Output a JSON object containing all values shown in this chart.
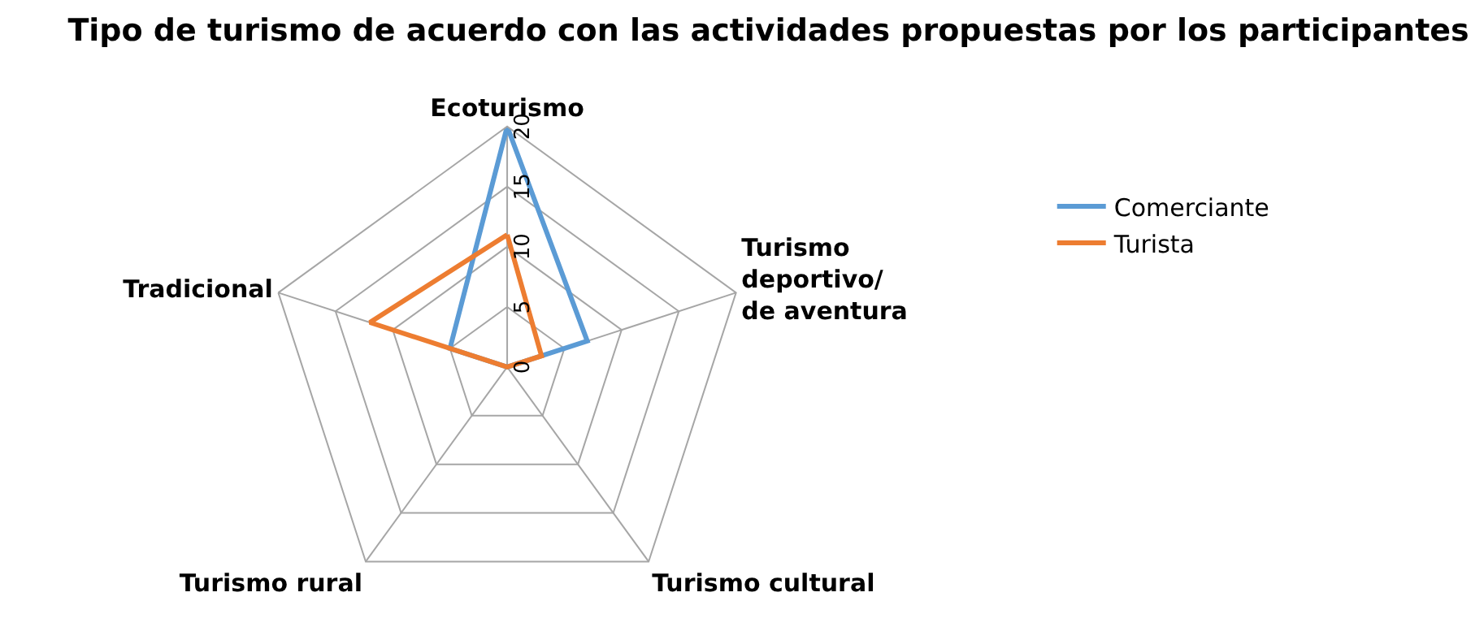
{
  "chart_data": {
    "type": "radar",
    "title": "Tipo de turismo de acuerdo con las actividades propuestas por los participantes",
    "categories": [
      "Ecoturismo",
      "Turismo deportivo/ de aventura",
      "Turismo cultural",
      "Turismo rural",
      "Tradicional"
    ],
    "series": [
      {
        "name": "Comerciante",
        "color": "#5b9bd5",
        "values": [
          20,
          7,
          0,
          0,
          5
        ]
      },
      {
        "name": "Turista",
        "color": "#ed7d31",
        "values": [
          11,
          3,
          0,
          0,
          12
        ]
      }
    ],
    "ylim": [
      0,
      20
    ],
    "yticks": [
      0,
      5,
      10,
      15,
      20
    ],
    "grid": true,
    "legend": "right",
    "marker": "none"
  }
}
